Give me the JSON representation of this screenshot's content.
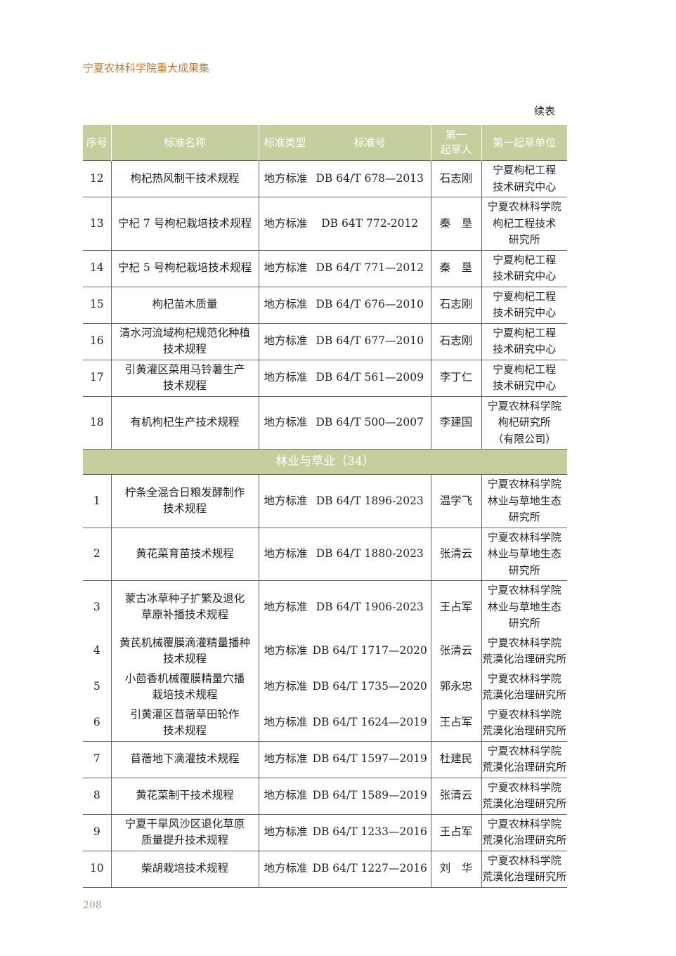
{
  "header": {
    "title": "宁夏农林科学院重大成果集",
    "continued": "续表"
  },
  "table": {
    "columns": [
      "序号",
      "标准名称",
      "标准类型",
      "标准号",
      "第一\n起草人",
      "第一起草单位"
    ],
    "rows": [
      [
        "12",
        "枸杞热风制干技术规程",
        "地方标准",
        "DB 64/T 678—2013",
        "石志刚",
        "宁夏枸杞工程\n技术研究中心"
      ],
      [
        "13",
        "宁杞 7 号枸杞栽培技术规程",
        "地方标准",
        "DB 64T 772-2012",
        "秦　垦",
        "宁夏农林科学院\n枸杞工程技术\n研究所"
      ],
      [
        "14",
        "宁杞 5 号枸杞栽培技术规程",
        "地方标准",
        "DB 64/T 771—2012",
        "秦　垦",
        "宁夏枸杞工程\n技术研究中心"
      ],
      [
        "15",
        "枸杞苗木质量",
        "地方标准",
        "DB 64/T 676—2010",
        "石志刚",
        "宁夏枸杞工程\n技术研究中心"
      ],
      [
        "16",
        "清水河流域枸杞规范化种植\n技术规程",
        "地方标准",
        "DB 64/T 677—2010",
        "石志刚",
        "宁夏枸杞工程\n技术研究中心"
      ],
      [
        "17",
        "引黄灌区菜用马铃薯生产\n技术规程",
        "地方标准",
        "DB 64/T 561—2009",
        "李丁仁",
        "宁夏枸杞工程\n技术研究中心"
      ],
      [
        "18",
        "有机枸杞生产技术规程",
        "地方标准",
        "DB 64/T 500—2007",
        "李建国",
        "宁夏农林科学院\n枸杞研究所\n（有限公司）"
      ]
    ],
    "section": "林业与草业（34）",
    "section_rows": [
      [
        "1",
        "柠条全混合日粮发酵制作\n技术规程",
        "地方标准",
        "DB 64/T 1896-2023",
        "温学飞",
        "宁夏农林科学院\n林业与草地生态\n研究所"
      ],
      [
        "2",
        "黄花菜育苗技术规程",
        "地方标准",
        "DB 64/T 1880-2023",
        "张清云",
        "宁夏农林科学院\n林业与草地生态\n研究所"
      ],
      [
        "3",
        "蒙古冰草种子扩繁及退化\n草原补播技术规程",
        "地方标准",
        "DB 64/T 1906-2023",
        "王占军",
        "宁夏农林科学院\n林业与草地生态\n研究所"
      ],
      [
        "4",
        "黄芪机械覆膜滴灌精量播种\n技术规程",
        "地方标准",
        "DB 64/T 1717—2020",
        "张清云",
        "宁夏农林科学院\n荒漠化治理研究所"
      ],
      [
        "5",
        "小茴香机械覆膜精量穴播\n栽培技术规程",
        "地方标准",
        "DB 64/T 1735—2020",
        "郭永忠",
        "宁夏农林科学院\n荒漠化治理研究所"
      ],
      [
        "6",
        "引黄灌区苜蓿草田轮作\n技术规程",
        "地方标准",
        "DB 64/T 1624—2019",
        "王占军",
        "宁夏农林科学院\n荒漠化治理研究所"
      ],
      [
        "7",
        "苜蓿地下滴灌技术规程",
        "地方标准",
        "DB 64/T 1597—2019",
        "杜建民",
        "宁夏农林科学院\n荒漠化治理研究所"
      ],
      [
        "8",
        "黄花菜制干技术规程",
        "地方标准",
        "DB 64/T 1589—2019",
        "张清云",
        "宁夏农林科学院\n荒漠化治理研究所"
      ],
      [
        "9",
        "宁夏干旱风沙区退化草原\n质量提升技术规程",
        "地方标准",
        "DB 64/T 1233—2016",
        "王占军",
        "宁夏农林科学院\n荒漠化治理研究所"
      ],
      [
        "10",
        "柴胡栽培技术规程",
        "地方标准",
        "DB 64/T 1227—2016",
        "刘　华",
        "宁夏农林科学院\n荒漠化治理研究所"
      ]
    ]
  },
  "footer": {
    "page": "208"
  }
}
